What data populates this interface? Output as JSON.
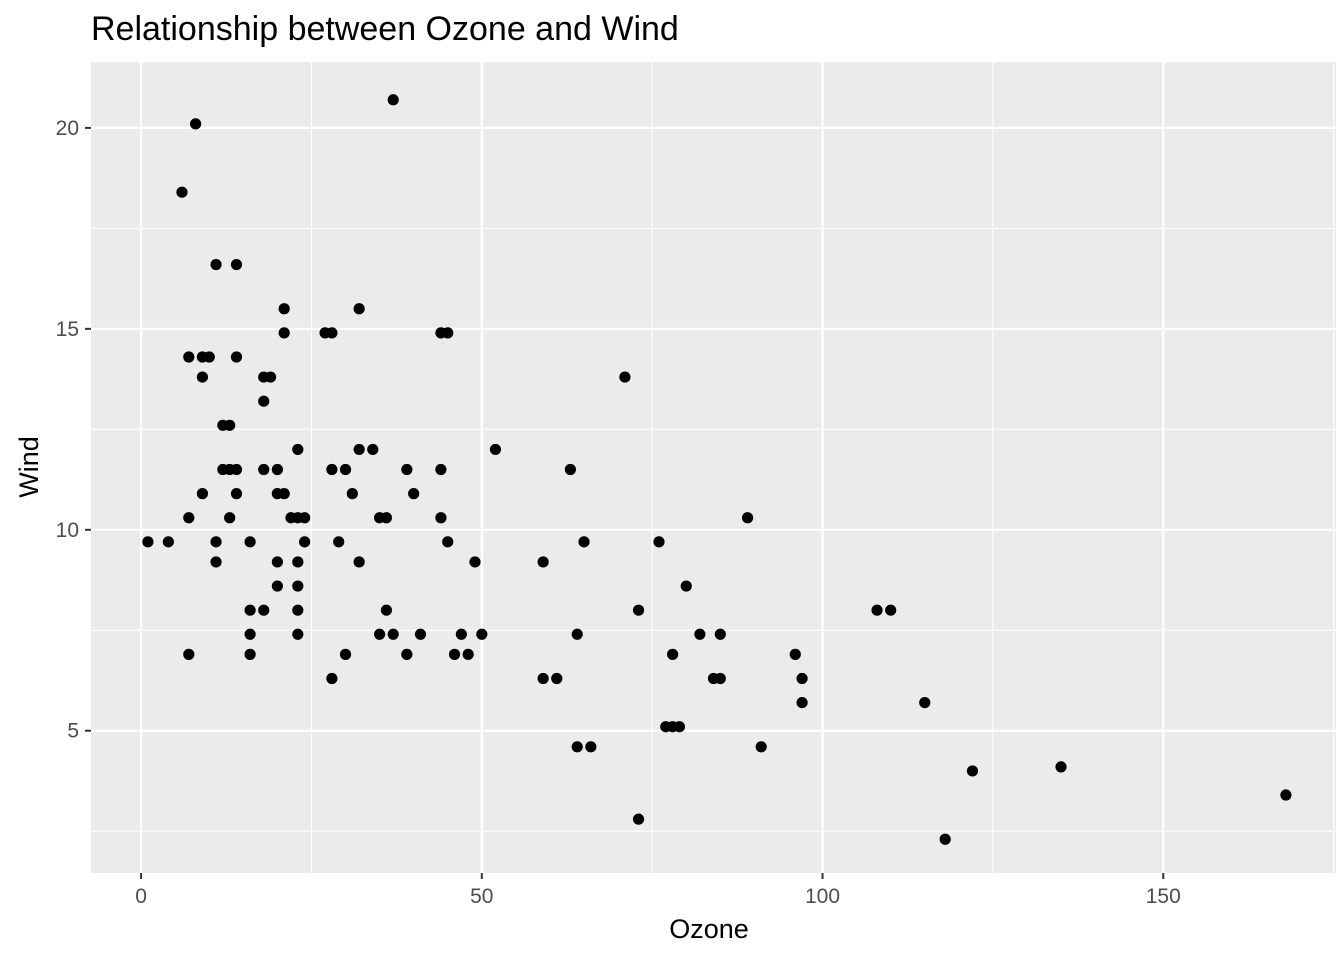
{
  "chart_data": {
    "type": "scatter",
    "title": "Relationship between Ozone and Wind",
    "xlabel": "Ozone",
    "ylabel": "Wind",
    "xlim": [
      -7.35,
      175.35
    ],
    "ylim": [
      1.46,
      21.64
    ],
    "x_ticks": [
      0,
      50,
      100,
      150
    ],
    "y_ticks": [
      5,
      10,
      15,
      20
    ],
    "grid": true,
    "legend": "none",
    "colors": {
      "panel": "#ebebeb",
      "grid": "#ffffff",
      "point": "#000000"
    },
    "points": [
      {
        "x": 1,
        "y": 9.7
      },
      {
        "x": 4,
        "y": 9.7
      },
      {
        "x": 6,
        "y": 18.4
      },
      {
        "x": 7,
        "y": 14.3
      },
      {
        "x": 7,
        "y": 10.3
      },
      {
        "x": 7,
        "y": 6.9
      },
      {
        "x": 8,
        "y": 20.1
      },
      {
        "x": 9,
        "y": 14.3
      },
      {
        "x": 9,
        "y": 13.8
      },
      {
        "x": 9,
        "y": 10.9
      },
      {
        "x": 10,
        "y": 14.3
      },
      {
        "x": 11,
        "y": 16.6
      },
      {
        "x": 11,
        "y": 9.7
      },
      {
        "x": 11,
        "y": 9.2
      },
      {
        "x": 12,
        "y": 12.6
      },
      {
        "x": 12,
        "y": 11.5
      },
      {
        "x": 13,
        "y": 12.6
      },
      {
        "x": 13,
        "y": 11.5
      },
      {
        "x": 13,
        "y": 10.3
      },
      {
        "x": 14,
        "y": 16.6
      },
      {
        "x": 14,
        "y": 14.3
      },
      {
        "x": 14,
        "y": 11.5
      },
      {
        "x": 14,
        "y": 10.9
      },
      {
        "x": 16,
        "y": 9.7
      },
      {
        "x": 16,
        "y": 8.0
      },
      {
        "x": 16,
        "y": 7.4
      },
      {
        "x": 16,
        "y": 6.9
      },
      {
        "x": 18,
        "y": 13.8
      },
      {
        "x": 18,
        "y": 13.2
      },
      {
        "x": 18,
        "y": 11.5
      },
      {
        "x": 18,
        "y": 8.0
      },
      {
        "x": 19,
        "y": 13.8
      },
      {
        "x": 20,
        "y": 11.5
      },
      {
        "x": 20,
        "y": 10.9
      },
      {
        "x": 20,
        "y": 9.2
      },
      {
        "x": 20,
        "y": 8.6
      },
      {
        "x": 21,
        "y": 15.5
      },
      {
        "x": 21,
        "y": 14.9
      },
      {
        "x": 21,
        "y": 10.9
      },
      {
        "x": 22,
        "y": 10.3
      },
      {
        "x": 23,
        "y": 12.0
      },
      {
        "x": 23,
        "y": 10.3
      },
      {
        "x": 23,
        "y": 9.2
      },
      {
        "x": 23,
        "y": 8.6
      },
      {
        "x": 23,
        "y": 8.0
      },
      {
        "x": 23,
        "y": 7.4
      },
      {
        "x": 24,
        "y": 10.3
      },
      {
        "x": 24,
        "y": 9.7
      },
      {
        "x": 27,
        "y": 14.9
      },
      {
        "x": 28,
        "y": 14.9
      },
      {
        "x": 28,
        "y": 11.5
      },
      {
        "x": 28,
        "y": 6.3
      },
      {
        "x": 29,
        "y": 9.7
      },
      {
        "x": 30,
        "y": 11.5
      },
      {
        "x": 30,
        "y": 6.9
      },
      {
        "x": 31,
        "y": 10.9
      },
      {
        "x": 32,
        "y": 15.5
      },
      {
        "x": 32,
        "y": 12.0
      },
      {
        "x": 32,
        "y": 9.2
      },
      {
        "x": 34,
        "y": 12.0
      },
      {
        "x": 35,
        "y": 10.3
      },
      {
        "x": 35,
        "y": 7.4
      },
      {
        "x": 36,
        "y": 10.3
      },
      {
        "x": 36,
        "y": 8.0
      },
      {
        "x": 37,
        "y": 20.7
      },
      {
        "x": 37,
        "y": 7.4
      },
      {
        "x": 39,
        "y": 11.5
      },
      {
        "x": 39,
        "y": 6.9
      },
      {
        "x": 40,
        "y": 10.9
      },
      {
        "x": 41,
        "y": 7.4
      },
      {
        "x": 44,
        "y": 14.9
      },
      {
        "x": 44,
        "y": 11.5
      },
      {
        "x": 44,
        "y": 10.3
      },
      {
        "x": 45,
        "y": 14.9
      },
      {
        "x": 45,
        "y": 9.7
      },
      {
        "x": 46,
        "y": 6.9
      },
      {
        "x": 47,
        "y": 7.4
      },
      {
        "x": 48,
        "y": 6.9
      },
      {
        "x": 49,
        "y": 9.2
      },
      {
        "x": 50,
        "y": 7.4
      },
      {
        "x": 52,
        "y": 12.0
      },
      {
        "x": 59,
        "y": 9.2
      },
      {
        "x": 59,
        "y": 6.3
      },
      {
        "x": 61,
        "y": 6.3
      },
      {
        "x": 63,
        "y": 11.5
      },
      {
        "x": 64,
        "y": 7.4
      },
      {
        "x": 64,
        "y": 4.6
      },
      {
        "x": 65,
        "y": 9.7
      },
      {
        "x": 66,
        "y": 4.6
      },
      {
        "x": 71,
        "y": 13.8
      },
      {
        "x": 73,
        "y": 8.0
      },
      {
        "x": 73,
        "y": 2.8
      },
      {
        "x": 76,
        "y": 9.7
      },
      {
        "x": 77,
        "y": 5.1
      },
      {
        "x": 78,
        "y": 6.9
      },
      {
        "x": 78,
        "y": 5.1
      },
      {
        "x": 79,
        "y": 5.1
      },
      {
        "x": 80,
        "y": 8.6
      },
      {
        "x": 82,
        "y": 7.4
      },
      {
        "x": 84,
        "y": 6.3
      },
      {
        "x": 85,
        "y": 7.4
      },
      {
        "x": 85,
        "y": 6.3
      },
      {
        "x": 89,
        "y": 10.3
      },
      {
        "x": 91,
        "y": 4.6
      },
      {
        "x": 96,
        "y": 6.9
      },
      {
        "x": 97,
        "y": 6.3
      },
      {
        "x": 97,
        "y": 5.7
      },
      {
        "x": 108,
        "y": 8.0
      },
      {
        "x": 110,
        "y": 8.0
      },
      {
        "x": 115,
        "y": 5.7
      },
      {
        "x": 118,
        "y": 2.3
      },
      {
        "x": 122,
        "y": 4.0
      },
      {
        "x": 135,
        "y": 4.1
      },
      {
        "x": 168,
        "y": 3.4
      }
    ]
  }
}
